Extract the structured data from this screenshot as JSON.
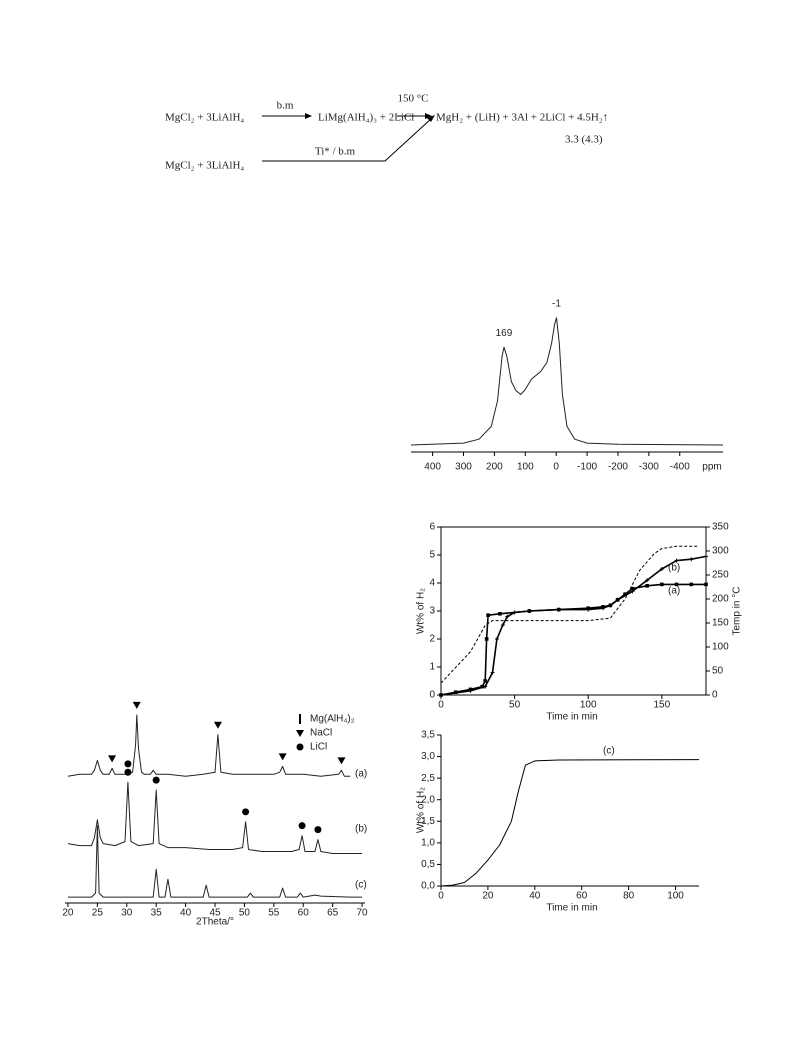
{
  "scheme": {
    "reactant_top": "MgCl₂ + 3LiAlH₄",
    "arrow1_label": "b.m",
    "intermediate": "LiMg(AlH₄)₃ + 2LiCl",
    "arrow2_label": "150 °C",
    "products": "MgH₂ + (LiH) + 3Al + 2LiCl + 4.5H₂↑",
    "yield": "3.3 (4.3)",
    "reactant_bottom": "MgCl₂ + 3LiAlH₄",
    "arrow3_label": "Ti* / b.m"
  },
  "chart_data": [
    {
      "type": "line",
      "xlabel": "ppm",
      "xlim": [
        470,
        -540
      ],
      "ylim": [
        -5,
        110
      ],
      "xticks": [
        400,
        300,
        200,
        100,
        0,
        -100,
        -200,
        -300,
        -400
      ],
      "series": [
        {
          "color": "#222222",
          "x": [
            470,
            300,
            250,
            210,
            190,
            175,
            169,
            160,
            145,
            130,
            115,
            100,
            80,
            65,
            50,
            30,
            15,
            5,
            -1,
            -10,
            -20,
            -35,
            -60,
            -100,
            -200,
            -540
          ],
          "values": [
            0.5,
            2,
            5,
            15,
            35,
            70,
            77,
            70,
            50,
            43,
            40,
            44,
            52,
            55,
            58,
            65,
            80,
            95,
            100,
            80,
            40,
            15,
            5,
            2,
            1,
            0.5
          ]
        }
      ],
      "annotations": [
        {
          "x": 169,
          "y": 77
        },
        {
          "x": -1,
          "y": 100
        }
      ]
    },
    {
      "type": "line",
      "xlabel": "Time in min",
      "ylabel": "Wt% of H₂",
      "y2label": "Temp in °C",
      "xlim": [
        0,
        180
      ],
      "ylim": [
        0,
        6
      ],
      "y2lim": [
        0,
        350
      ],
      "xticks": [
        0,
        50,
        100,
        150
      ],
      "yticks": [
        0,
        1,
        2,
        3,
        4,
        5,
        6
      ],
      "y2ticks": [
        0,
        50,
        100,
        150,
        200,
        250,
        300,
        350
      ],
      "series": [
        {
          "name": "(a)",
          "color": "#000000",
          "marker": "square",
          "x": [
            0,
            10,
            20,
            28,
            30,
            31,
            32,
            40,
            60,
            80,
            100,
            110,
            115,
            120,
            125,
            130,
            140,
            150,
            160,
            170,
            180
          ],
          "values": [
            0,
            0.1,
            0.2,
            0.3,
            0.5,
            2.0,
            2.85,
            2.9,
            3.0,
            3.05,
            3.1,
            3.15,
            3.2,
            3.4,
            3.6,
            3.8,
            3.9,
            3.95,
            3.95,
            3.95,
            3.95
          ]
        },
        {
          "name": "(b)",
          "color": "#000000",
          "marker": "plus",
          "x": [
            0,
            20,
            30,
            35,
            38,
            42,
            45,
            50,
            60,
            80,
            100,
            110,
            115,
            120,
            130,
            140,
            150,
            160,
            170,
            180
          ],
          "values": [
            0,
            0.15,
            0.3,
            0.8,
            2,
            2.5,
            2.8,
            2.95,
            3.0,
            3.05,
            3.05,
            3.1,
            3.2,
            3.4,
            3.7,
            4.1,
            4.5,
            4.8,
            4.85,
            4.95
          ]
        },
        {
          "color": "#000000",
          "style": "dashed",
          "axis": "y2",
          "x": [
            0,
            20,
            30,
            35,
            60,
            100,
            115,
            125,
            135,
            145,
            150,
            160,
            175
          ],
          "values": [
            25,
            90,
            145,
            155,
            155,
            155,
            160,
            200,
            260,
            295,
            305,
            310,
            310
          ]
        }
      ]
    },
    {
      "type": "line",
      "xlabel": "Time in min",
      "ylabel": "Wt% of H₂",
      "xlim": [
        0,
        110
      ],
      "ylim": [
        0,
        3.5
      ],
      "xticks": [
        0,
        20,
        40,
        60,
        80,
        100
      ],
      "yticks": [
        {
          "value": 0,
          "label": "0,0"
        },
        {
          "value": 0.5,
          "label": "0,5"
        },
        {
          "value": 1,
          "label": "1,0"
        },
        {
          "value": 1.5,
          "label": "1,5"
        },
        {
          "value": 2,
          "label": "2,0"
        },
        {
          "value": 2.5,
          "label": "2,5"
        },
        {
          "value": 3,
          "label": "3,0"
        },
        {
          "value": 3.5,
          "label": "3,5"
        }
      ],
      "series": [
        {
          "name": "(c)",
          "color": "#000000",
          "x": [
            0,
            5,
            10,
            15,
            20,
            25,
            30,
            33,
            36,
            40,
            50,
            110
          ],
          "values": [
            0,
            0.02,
            0.08,
            0.3,
            0.6,
            0.95,
            1.5,
            2.2,
            2.8,
            2.9,
            2.92,
            2.93
          ]
        }
      ]
    },
    {
      "type": "line",
      "xlabel": "2Theta/°",
      "xlim": [
        19.5,
        70.5
      ],
      "ylim": [
        0,
        100
      ],
      "xticks": [
        20,
        25,
        30,
        35,
        40,
        45,
        50,
        55,
        60,
        65,
        70
      ],
      "series": [
        {
          "name": "(a)",
          "color": "#222222",
          "x": [
            20,
            22,
            24,
            24.5,
            25,
            25.5,
            26,
            27,
            27.5,
            28,
            29,
            30,
            31,
            31.5,
            31.7,
            32,
            32.5,
            33,
            34,
            34.5,
            35,
            37,
            40,
            43,
            45,
            45.5,
            46,
            48,
            52,
            55,
            56,
            56.5,
            57,
            60,
            63,
            66,
            66.5,
            67,
            68
          ],
          "values": [
            64,
            65,
            65,
            67,
            72,
            67,
            65,
            65,
            68,
            65,
            65,
            65,
            66,
            80,
            95,
            78,
            66,
            65,
            65,
            67,
            65,
            65,
            64,
            65,
            66,
            85,
            66,
            65,
            65,
            65,
            66,
            69,
            65,
            65,
            64,
            65,
            67,
            64,
            64
          ]
        },
        {
          "name": "(b)",
          "color": "#222222",
          "x": [
            20,
            22,
            24,
            24.5,
            25,
            25.5,
            26,
            28,
            29.7,
            30.2,
            30.7,
            32,
            34.5,
            35,
            35.5,
            37,
            40,
            44,
            48,
            49.7,
            50.2,
            50.7,
            53,
            56,
            58,
            59.3,
            59.8,
            60.3,
            61,
            62,
            62.5,
            63,
            65,
            68,
            70
          ],
          "values": [
            30,
            29,
            29,
            33,
            42,
            33,
            30,
            29,
            31,
            61,
            31,
            29,
            30,
            57,
            30,
            28,
            28,
            27,
            27,
            28,
            41,
            27,
            26,
            26,
            26,
            27,
            34,
            26,
            26,
            26,
            32,
            26,
            25,
            25,
            25
          ]
        },
        {
          "name": "(c)",
          "color": "#222222",
          "x": [
            20,
            24,
            24.7,
            25,
            25.3,
            26,
            30,
            34.5,
            35,
            35.5,
            36.5,
            37,
            37.5,
            40,
            43,
            43.5,
            44,
            48,
            50.5,
            51,
            51.5,
            55,
            56,
            56.5,
            57,
            59,
            59.5,
            60,
            62,
            63,
            68,
            70
          ],
          "values": [
            3,
            3,
            5,
            39,
            5,
            3,
            3,
            3,
            17,
            3,
            3,
            12,
            3,
            3,
            3,
            9,
            3,
            3,
            3,
            5,
            3,
            3,
            3,
            7.5,
            3,
            3,
            5,
            3,
            4,
            3.5,
            3,
            3
          ]
        }
      ],
      "legend": [
        {
          "name": "Mg(AlH₄)₂",
          "shape": "bar",
          "peaks": [
            [],
            [],
            []
          ]
        },
        {
          "name": "NaCl",
          "shape": "triangle",
          "peaks": [
            [
              27.5,
              31.7,
              45.5,
              56.5,
              66.5
            ],
            [],
            []
          ]
        },
        {
          "name": "LiCl",
          "shape": "circle",
          "peaks": [
            [
              30.2
            ],
            [
              30.2,
              35,
              50.2,
              59.8,
              62.5
            ],
            []
          ]
        }
      ]
    }
  ]
}
